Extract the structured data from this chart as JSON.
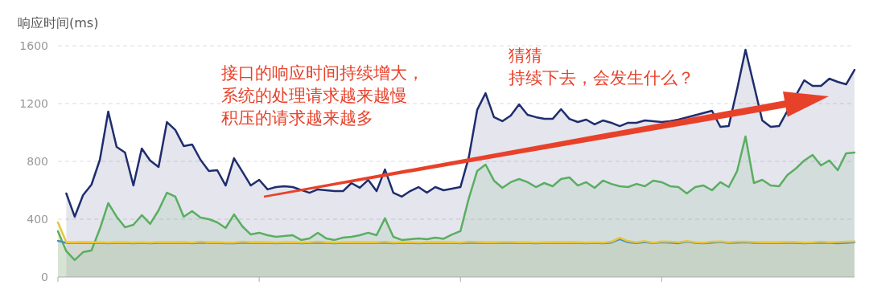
{
  "chart_data": {
    "type": "area",
    "ylabel": "响应时间(ms)",
    "ylim": [
      0,
      1600
    ],
    "yticks": [
      0,
      400,
      800,
      1200,
      1600
    ],
    "grid": "y",
    "marker": "none",
    "categories": [
      null,
      null,
      null,
      null,
      null,
      null,
      null,
      null,
      null,
      null,
      null,
      null,
      null,
      null,
      null,
      null,
      null,
      null,
      null,
      null,
      null,
      null,
      null,
      null,
      null,
      null,
      null,
      null,
      null,
      null,
      null,
      null,
      null,
      null,
      null,
      null,
      null,
      null,
      null,
      null,
      null,
      null,
      null,
      null,
      null,
      null,
      null,
      null,
      null,
      null,
      null,
      null,
      null,
      null,
      null,
      null,
      null,
      null,
      null,
      null,
      null,
      null,
      null,
      null,
      null,
      null,
      null,
      null,
      null,
      null,
      null,
      null,
      null,
      null,
      null,
      null,
      null,
      null,
      null,
      null,
      null,
      null,
      null,
      null,
      null,
      null,
      null,
      null,
      null,
      null,
      null,
      null,
      null,
      null,
      null,
      null
    ],
    "series": [
      {
        "color": "#1f2d6e",
        "values": [
          null,
          578,
          417,
          567,
          639,
          811,
          1144,
          900,
          861,
          633,
          889,
          806,
          761,
          1072,
          1017,
          906,
          917,
          811,
          733,
          739,
          633,
          822,
          728,
          633,
          672,
          606,
          622,
          628,
          622,
          null,
          583,
          606,
          null,
          594,
          594,
          650,
          617,
          672,
          594,
          744,
          583,
          556,
          594,
          622,
          583,
          622,
          600,
          611,
          622,
          828,
          1156,
          1272,
          1106,
          1078,
          1117,
          1194,
          1122,
          1106,
          1094,
          1094,
          1161,
          1094,
          1072,
          1089,
          1056,
          1083,
          1067,
          1044,
          1067,
          1067,
          1083,
          null,
          1072,
          1078,
          1089,
          null,
          null,
          null,
          1150,
          1039,
          1044,
          1300,
          1572,
          null,
          1083,
          1039,
          1044,
          null,
          null,
          1361,
          1322,
          1322,
          1372,
          1350,
          1333,
          1433
        ]
      },
      {
        "color": "#5aae61",
        "values": [
          317,
          178,
          117,
          172,
          183,
          333,
          511,
          417,
          344,
          361,
          428,
          367,
          461,
          583,
          556,
          417,
          456,
          411,
          400,
          378,
          339,
          433,
          350,
          294,
          306,
          289,
          278,
          283,
          289,
          256,
          267,
          306,
          267,
          256,
          272,
          278,
          289,
          306,
          289,
          406,
          278,
          256,
          261,
          267,
          261,
          272,
          264,
          294,
          317,
          544,
          733,
          778,
          667,
          617,
          656,
          678,
          656,
          622,
          650,
          628,
          678,
          689,
          633,
          656,
          617,
          667,
          644,
          628,
          622,
          644,
          628,
          667,
          656,
          628,
          622,
          578,
          622,
          633,
          600,
          656,
          622,
          733,
          972,
          650,
          672,
          633,
          628,
          706,
          750,
          806,
          844,
          772,
          806,
          739,
          856,
          861
        ]
      },
      {
        "color": "#4a90c8",
        "values": [
          250,
          236,
          236,
          236,
          236,
          236,
          234,
          236,
          236,
          234,
          236,
          234,
          236,
          236,
          236,
          238,
          234,
          238,
          236,
          236,
          234,
          234,
          238,
          236,
          236,
          236,
          234,
          236,
          236,
          234,
          236,
          238,
          236,
          234,
          236,
          236,
          236,
          236,
          236,
          238,
          234,
          236,
          236,
          234,
          236,
          236,
          236,
          236,
          234,
          238,
          236,
          236,
          236,
          236,
          238,
          236,
          236,
          234,
          236,
          236,
          236,
          236,
          236,
          234,
          236,
          234,
          238,
          262,
          240,
          234,
          242,
          234,
          240,
          238,
          234,
          244,
          236,
          234,
          238,
          242,
          236,
          238,
          240,
          236,
          236,
          236,
          236,
          236,
          236,
          234,
          236,
          236,
          236,
          234,
          236,
          240
        ]
      },
      {
        "color": "#e8c53e",
        "values": [
          378,
          240,
          240,
          242,
          240,
          240,
          238,
          240,
          240,
          238,
          240,
          238,
          242,
          240,
          240,
          242,
          238,
          244,
          240,
          240,
          238,
          238,
          244,
          240,
          242,
          240,
          238,
          240,
          240,
          238,
          240,
          244,
          240,
          238,
          240,
          240,
          242,
          240,
          240,
          244,
          238,
          240,
          240,
          238,
          240,
          242,
          240,
          240,
          238,
          244,
          242,
          240,
          240,
          242,
          242,
          240,
          240,
          238,
          240,
          242,
          240,
          242,
          240,
          238,
          240,
          238,
          244,
          272,
          248,
          240,
          248,
          238,
          246,
          244,
          240,
          248,
          240,
          238,
          244,
          246,
          240,
          244,
          244,
          242,
          240,
          240,
          240,
          242,
          242,
          238,
          240,
          244,
          240,
          242,
          244,
          246
        ]
      }
    ],
    "annotations": [
      "接口的响应时间持续增大，",
      "系统的处理请求越来越慢",
      "积压的请求越来越多",
      "猜猜",
      "持续下去，会发生什么？"
    ]
  }
}
